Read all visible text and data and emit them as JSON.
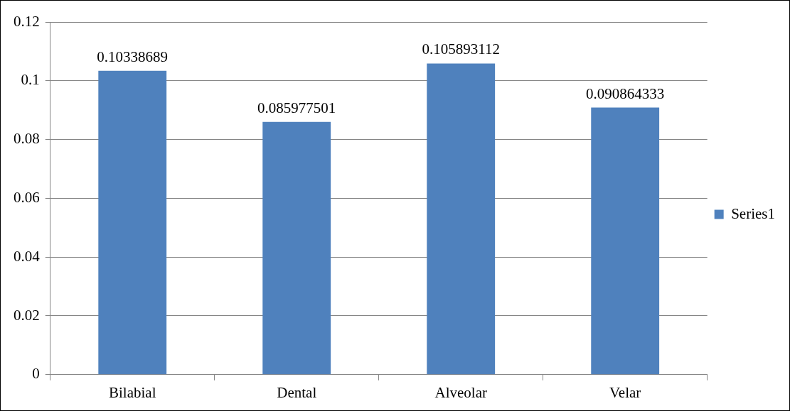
{
  "chart_data": {
    "type": "bar",
    "categories": [
      "Bilabial",
      "Dental",
      "Alveolar",
      "Velar"
    ],
    "series": [
      {
        "name": "Series1",
        "color": "#4f81bd",
        "values": [
          0.10338689,
          0.085977501,
          0.105893112,
          0.090864333
        ]
      }
    ],
    "ylim": [
      0,
      0.12
    ],
    "yticks": [
      0,
      0.02,
      0.04,
      0.06,
      0.08,
      0.1,
      0.12
    ],
    "grid": "y",
    "legend": "right",
    "data_labels": true
  }
}
